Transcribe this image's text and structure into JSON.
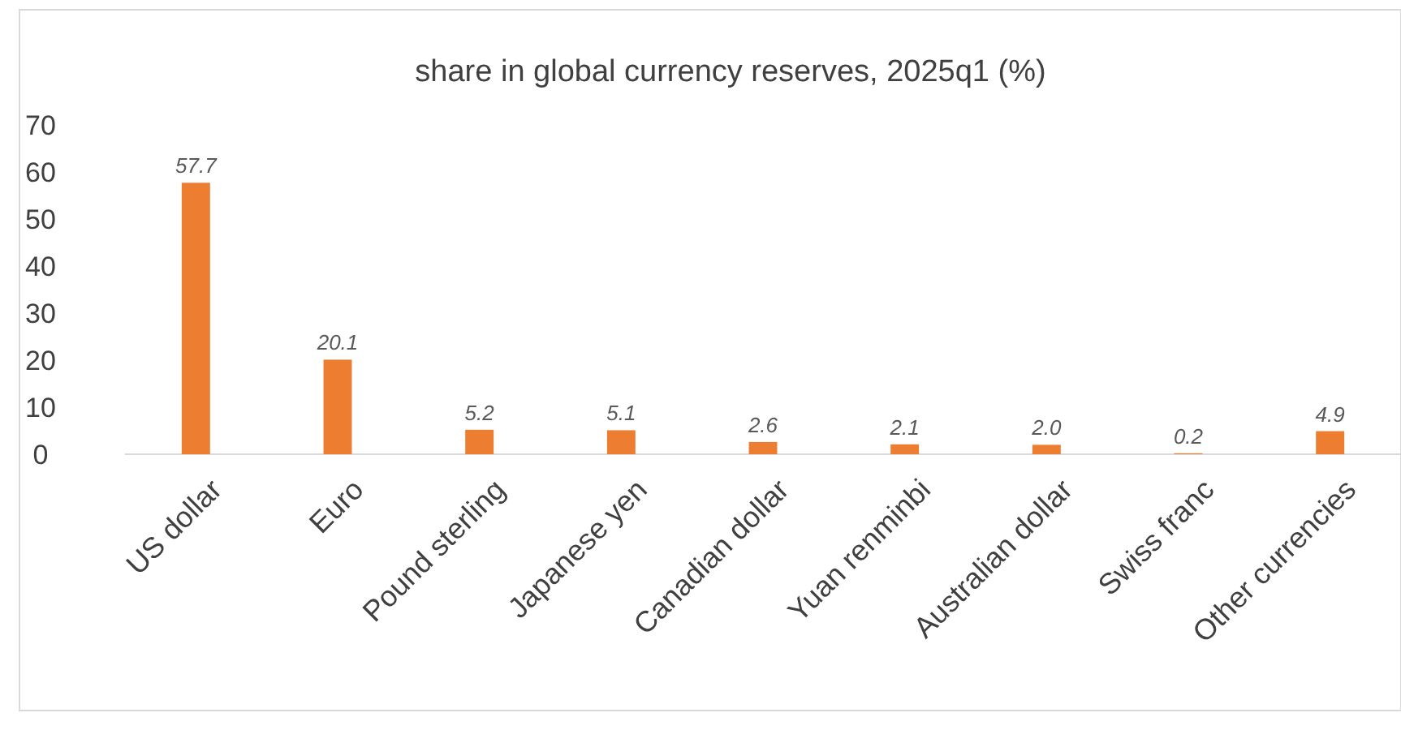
{
  "chart_data": {
    "type": "bar",
    "title": "share in global currency reserves, 2025q1  (%)",
    "categories": [
      "US dollar",
      "Euro",
      "Pound sterling",
      "Japanese yen",
      "Canadian dollar",
      "Yuan renminbi",
      "Australian dollar",
      "Swiss franc",
      "Other currencies"
    ],
    "values": [
      57.7,
      20.1,
      5.2,
      5.1,
      2.6,
      2.1,
      2.0,
      0.2,
      4.9
    ],
    "value_labels": [
      "57.7",
      "20.1",
      "5.2",
      "5.1",
      "2.6",
      "2.1",
      "2.0",
      "0.2",
      "4.9"
    ],
    "color": "#ed7d31",
    "ylim": [
      0,
      70
    ],
    "yticks": [
      0,
      10,
      20,
      30,
      40,
      50,
      60,
      70
    ]
  }
}
